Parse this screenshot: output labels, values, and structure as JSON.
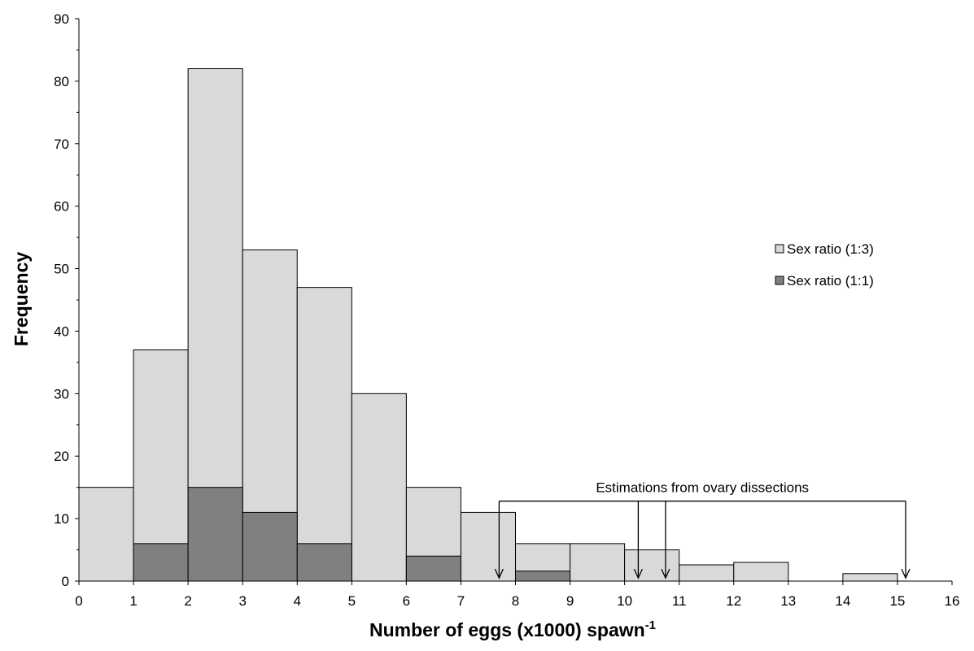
{
  "chart_data": {
    "type": "bar",
    "title": "",
    "xlabel": "Number of eggs (x1000) spawn",
    "xlabel_superscript": "-1",
    "ylabel": "Frequency",
    "xlim": [
      0,
      16
    ],
    "ylim": [
      0,
      90
    ],
    "x_ticks": [
      "0",
      "1",
      "2",
      "3",
      "4",
      "5",
      "6",
      "7",
      "8",
      "9",
      "10",
      "11",
      "12",
      "13",
      "14",
      "15",
      "16"
    ],
    "y_ticks": [
      "0",
      "10",
      "20",
      "30",
      "40",
      "50",
      "60",
      "70",
      "80",
      "90"
    ],
    "bin_width": 1,
    "bins": [
      [
        0,
        1
      ],
      [
        1,
        2
      ],
      [
        2,
        3
      ],
      [
        3,
        4
      ],
      [
        4,
        5
      ],
      [
        5,
        6
      ],
      [
        6,
        7
      ],
      [
        7,
        8
      ],
      [
        8,
        9
      ],
      [
        9,
        10
      ],
      [
        10,
        11
      ],
      [
        11,
        12
      ],
      [
        12,
        13
      ],
      [
        13,
        14
      ],
      [
        14,
        15
      ]
    ],
    "series": [
      {
        "name": "Sex ratio (1:3)",
        "color": "#d9d9d9",
        "values": [
          15,
          37,
          82,
          53,
          47,
          30,
          15,
          11,
          6,
          6,
          5,
          2.6,
          3,
          0,
          1.2
        ]
      },
      {
        "name": "Sex ratio (1:1)",
        "color": "#808080",
        "values": [
          0,
          6,
          15,
          11,
          6,
          0,
          4,
          0,
          1.6,
          0,
          0,
          0,
          0,
          0,
          0
        ]
      }
    ],
    "legend_position": "right",
    "annotation": {
      "text": "Estimations from ovary dissections",
      "arrow_x": [
        7.7,
        10.25,
        10.75,
        15.15
      ]
    },
    "grid": false
  }
}
